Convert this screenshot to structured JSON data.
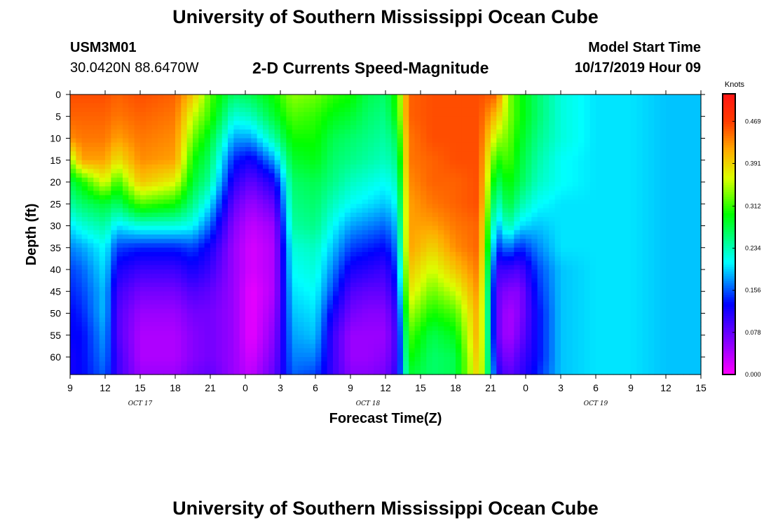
{
  "page": {
    "title_top": "University of Southern Mississippi Ocean Cube",
    "title_bottom": "University of Southern Mississippi Ocean Cube",
    "station_id": "USM3M01",
    "station_location": "30.0420N 88.6470W",
    "chart_title": "2-D Currents Speed-Magnitude",
    "model_start_label": "Model Start Time",
    "model_start_value": "10/17/2019 Hour 09"
  },
  "chart_data": {
    "type": "heatmap",
    "title": "2-D Currents Speed-Magnitude",
    "xlabel": "Forecast Time(Z)",
    "ylabel": "Depth (ft)",
    "colorbar_label": "Knots",
    "colorbar_ticks": [
      "0.000",
      "0.078",
      "0.156",
      "0.234",
      "0.312",
      "0.391",
      "0.469"
    ],
    "colorbar_range": [
      0,
      0.52
    ],
    "x_range_hours": [
      0,
      54
    ],
    "y_range_ft": [
      0,
      64
    ],
    "x_tick_labels": [
      "9",
      "12",
      "15",
      "18",
      "21",
      "0",
      "3",
      "6",
      "9",
      "12",
      "15",
      "18",
      "21",
      "0",
      "3",
      "6",
      "9",
      "12",
      "15"
    ],
    "y_tick_labels": [
      "0",
      "5",
      "10",
      "15",
      "20",
      "25",
      "30",
      "35",
      "40",
      "45",
      "50",
      "55",
      "60"
    ],
    "date_labels": [
      {
        "text": "OCT 17",
        "hour": 6.0
      },
      {
        "text": "OCT 18",
        "hour": 25.5
      },
      {
        "text": "OCT 19",
        "hour": 45.0
      }
    ],
    "depths_ft": [
      0,
      5,
      10,
      15,
      20,
      25,
      30,
      35,
      40,
      45,
      50,
      55,
      60,
      64
    ],
    "profiles": [
      {
        "hour": 0,
        "speeds": [
          0.46,
          0.45,
          0.43,
          0.34,
          0.27,
          0.24,
          0.2,
          0.17,
          0.15,
          0.14,
          0.13,
          0.13,
          0.12,
          0.12
        ]
      },
      {
        "hour": 1,
        "speeds": [
          0.46,
          0.45,
          0.44,
          0.42,
          0.3,
          0.26,
          0.22,
          0.18,
          0.16,
          0.15,
          0.14,
          0.13,
          0.13,
          0.13
        ]
      },
      {
        "hour": 3,
        "speeds": [
          0.46,
          0.45,
          0.44,
          0.42,
          0.37,
          0.28,
          0.24,
          0.21,
          0.2,
          0.19,
          0.19,
          0.18,
          0.17,
          0.16
        ]
      },
      {
        "hour": 4,
        "speeds": [
          0.45,
          0.44,
          0.42,
          0.38,
          0.31,
          0.26,
          0.2,
          0.15,
          0.12,
          0.1,
          0.09,
          0.09,
          0.1,
          0.1
        ]
      },
      {
        "hour": 6,
        "speeds": [
          0.46,
          0.45,
          0.44,
          0.43,
          0.4,
          0.32,
          0.22,
          0.14,
          0.1,
          0.07,
          0.05,
          0.04,
          0.04,
          0.05
        ]
      },
      {
        "hour": 9,
        "speeds": [
          0.45,
          0.44,
          0.43,
          0.42,
          0.37,
          0.3,
          0.22,
          0.14,
          0.1,
          0.07,
          0.05,
          0.04,
          0.04,
          0.05
        ]
      },
      {
        "hour": 10.5,
        "speeds": [
          0.4,
          0.36,
          0.33,
          0.3,
          0.28,
          0.25,
          0.21,
          0.15,
          0.12,
          0.09,
          0.07,
          0.06,
          0.06,
          0.07
        ]
      },
      {
        "hour": 12,
        "speeds": [
          0.32,
          0.31,
          0.28,
          0.26,
          0.24,
          0.2,
          0.16,
          0.12,
          0.1,
          0.08,
          0.07,
          0.07,
          0.07,
          0.08
        ]
      },
      {
        "hour": 14,
        "speeds": [
          0.26,
          0.22,
          0.18,
          0.14,
          0.11,
          0.08,
          0.06,
          0.05,
          0.05,
          0.05,
          0.05,
          0.05,
          0.05,
          0.05
        ]
      },
      {
        "hour": 15.5,
        "speeds": [
          0.27,
          0.23,
          0.18,
          0.12,
          0.08,
          0.05,
          0.03,
          0.02,
          0.02,
          0.01,
          0.01,
          0.01,
          0.02,
          0.03
        ]
      },
      {
        "hour": 17.5,
        "speeds": [
          0.3,
          0.28,
          0.24,
          0.18,
          0.12,
          0.08,
          0.05,
          0.04,
          0.04,
          0.04,
          0.05,
          0.06,
          0.07,
          0.08
        ]
      },
      {
        "hour": 19,
        "speeds": [
          0.34,
          0.32,
          0.3,
          0.28,
          0.26,
          0.25,
          0.24,
          0.22,
          0.21,
          0.2,
          0.19,
          0.18,
          0.17,
          0.16
        ]
      },
      {
        "hour": 21,
        "speeds": [
          0.33,
          0.31,
          0.3,
          0.29,
          0.27,
          0.26,
          0.25,
          0.23,
          0.22,
          0.21,
          0.2,
          0.19,
          0.17,
          0.15
        ]
      },
      {
        "hour": 22.5,
        "speeds": [
          0.31,
          0.29,
          0.27,
          0.26,
          0.25,
          0.23,
          0.21,
          0.19,
          0.17,
          0.15,
          0.12,
          0.1,
          0.1,
          0.1
        ]
      },
      {
        "hour": 24,
        "speeds": [
          0.3,
          0.28,
          0.26,
          0.25,
          0.23,
          0.21,
          0.18,
          0.15,
          0.12,
          0.09,
          0.07,
          0.05,
          0.05,
          0.06
        ]
      },
      {
        "hour": 25.5,
        "speeds": [
          0.27,
          0.26,
          0.25,
          0.24,
          0.22,
          0.2,
          0.17,
          0.14,
          0.11,
          0.08,
          0.06,
          0.05,
          0.05,
          0.06
        ]
      },
      {
        "hour": 27,
        "speeds": [
          0.26,
          0.25,
          0.24,
          0.23,
          0.21,
          0.19,
          0.16,
          0.13,
          0.1,
          0.08,
          0.06,
          0.05,
          0.06,
          0.07
        ]
      },
      {
        "hour": 28,
        "speeds": [
          0.31,
          0.3,
          0.27,
          0.25,
          0.23,
          0.21,
          0.19,
          0.17,
          0.15,
          0.13,
          0.11,
          0.1,
          0.1,
          0.11
        ]
      },
      {
        "hour": 29,
        "speeds": [
          0.45,
          0.45,
          0.44,
          0.44,
          0.43,
          0.42,
          0.42,
          0.42,
          0.4,
          0.38,
          0.35,
          0.32,
          0.3,
          0.28
        ]
      },
      {
        "hour": 31,
        "speeds": [
          0.46,
          0.46,
          0.46,
          0.45,
          0.45,
          0.44,
          0.42,
          0.39,
          0.36,
          0.33,
          0.3,
          0.27,
          0.26,
          0.26
        ]
      },
      {
        "hour": 33,
        "speeds": [
          0.46,
          0.46,
          0.46,
          0.46,
          0.45,
          0.45,
          0.44,
          0.43,
          0.4,
          0.36,
          0.32,
          0.29,
          0.27,
          0.27
        ]
      },
      {
        "hour": 35,
        "speeds": [
          0.46,
          0.46,
          0.46,
          0.46,
          0.46,
          0.46,
          0.45,
          0.45,
          0.44,
          0.43,
          0.42,
          0.42,
          0.41,
          0.4
        ]
      },
      {
        "hour": 36.5,
        "speeds": [
          0.45,
          0.4,
          0.35,
          0.3,
          0.26,
          0.22,
          0.18,
          0.14,
          0.1,
          0.08,
          0.08,
          0.08,
          0.1,
          0.12
        ]
      },
      {
        "hour": 37.5,
        "speeds": [
          0.34,
          0.34,
          0.33,
          0.32,
          0.3,
          0.28,
          0.24,
          0.17,
          0.1,
          0.06,
          0.04,
          0.04,
          0.06,
          0.08
        ]
      },
      {
        "hour": 38.5,
        "speeds": [
          0.3,
          0.3,
          0.29,
          0.28,
          0.27,
          0.24,
          0.2,
          0.14,
          0.09,
          0.06,
          0.06,
          0.07,
          0.09,
          0.1
        ]
      },
      {
        "hour": 40,
        "speeds": [
          0.26,
          0.26,
          0.25,
          0.24,
          0.23,
          0.21,
          0.19,
          0.17,
          0.15,
          0.14,
          0.13,
          0.13,
          0.13,
          0.14
        ]
      },
      {
        "hour": 42,
        "speeds": [
          0.22,
          0.22,
          0.22,
          0.21,
          0.21,
          0.2,
          0.2,
          0.2,
          0.19,
          0.19,
          0.19,
          0.19,
          0.19,
          0.19
        ]
      },
      {
        "hour": 45,
        "speeds": [
          0.2,
          0.2,
          0.2,
          0.2,
          0.2,
          0.2,
          0.2,
          0.2,
          0.2,
          0.2,
          0.2,
          0.2,
          0.2,
          0.2
        ]
      },
      {
        "hour": 48,
        "speeds": [
          0.2,
          0.2,
          0.2,
          0.2,
          0.2,
          0.2,
          0.2,
          0.2,
          0.2,
          0.2,
          0.2,
          0.2,
          0.2,
          0.2
        ]
      },
      {
        "hour": 51,
        "speeds": [
          0.19,
          0.19,
          0.19,
          0.19,
          0.19,
          0.19,
          0.19,
          0.19,
          0.19,
          0.19,
          0.19,
          0.19,
          0.19,
          0.19
        ]
      },
      {
        "hour": 54,
        "speeds": [
          0.19,
          0.19,
          0.19,
          0.19,
          0.19,
          0.19,
          0.19,
          0.19,
          0.19,
          0.19,
          0.19,
          0.19,
          0.19,
          0.19
        ]
      }
    ]
  }
}
